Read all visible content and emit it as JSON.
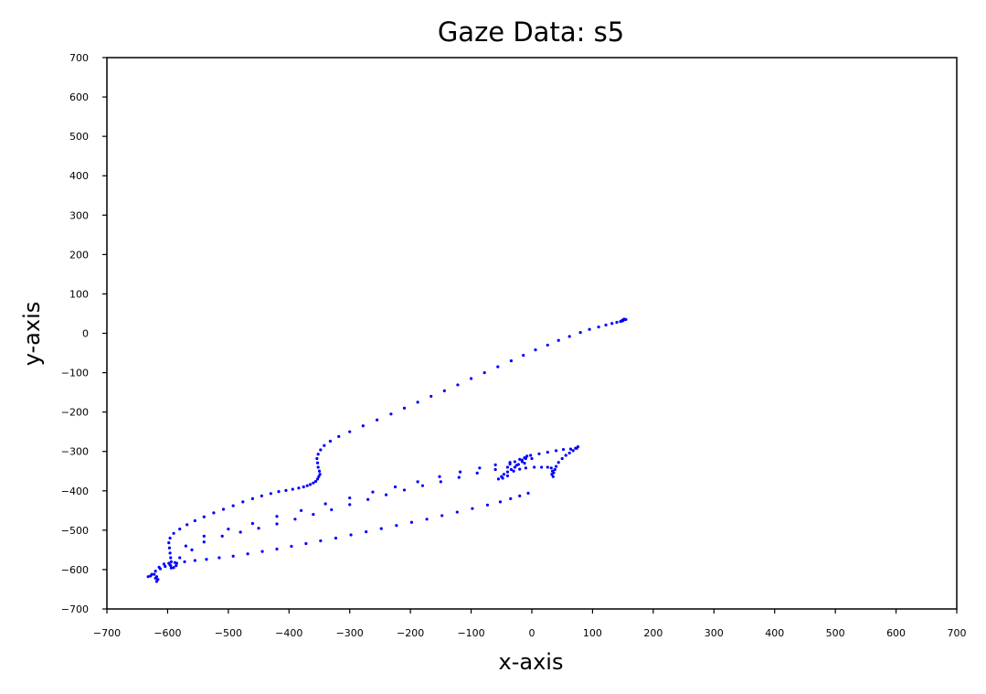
{
  "chart_data": {
    "type": "scatter",
    "title": "Gaze Data: s5",
    "xlabel": "x-axis",
    "ylabel": "y-axis",
    "xlim": [
      -700,
      700
    ],
    "ylim": [
      -700,
      700
    ],
    "xticks": [
      -700,
      -600,
      -500,
      -400,
      -300,
      -200,
      -100,
      0,
      100,
      200,
      300,
      400,
      500,
      600,
      700
    ],
    "yticks": [
      -700,
      -600,
      -500,
      -400,
      -300,
      -200,
      -100,
      0,
      100,
      200,
      300,
      400,
      500,
      600,
      700
    ],
    "xtick_labels": [
      "−700",
      "−600",
      "−500",
      "−400",
      "−300",
      "−200",
      "−100",
      "0",
      "100",
      "200",
      "300",
      "400",
      "500",
      "600",
      "700"
    ],
    "ytick_labels": [
      "−700",
      "−600",
      "−500",
      "−400",
      "−300",
      "−200",
      "−100",
      "0",
      "100",
      "200",
      "300",
      "400",
      "500",
      "600",
      "700"
    ],
    "grid": false,
    "marker_color": "#0000ff",
    "points": [
      [
        153,
        35
      ],
      [
        151,
        34
      ],
      [
        149,
        33
      ],
      [
        152,
        36
      ],
      [
        155,
        35
      ],
      [
        150,
        32
      ],
      [
        148,
        31
      ],
      [
        146,
        30
      ],
      [
        140,
        28
      ],
      [
        132,
        25
      ],
      [
        122,
        21
      ],
      [
        110,
        16
      ],
      [
        95,
        10
      ],
      [
        80,
        2
      ],
      [
        62,
        -8
      ],
      [
        44,
        -18
      ],
      [
        26,
        -30
      ],
      [
        6,
        -42
      ],
      [
        -14,
        -56
      ],
      [
        -34,
        -70
      ],
      [
        -56,
        -85
      ],
      [
        -78,
        -100
      ],
      [
        -100,
        -115
      ],
      [
        -122,
        -131
      ],
      [
        -144,
        -146
      ],
      [
        -166,
        -160
      ],
      [
        -188,
        -175
      ],
      [
        -210,
        -190
      ],
      [
        -232,
        -205
      ],
      [
        -255,
        -220
      ],
      [
        -278,
        -235
      ],
      [
        -300,
        -250
      ],
      [
        -318,
        -262
      ],
      [
        -332,
        -274
      ],
      [
        -342,
        -285
      ],
      [
        -348,
        -296
      ],
      [
        -352,
        -307
      ],
      [
        -354,
        -318
      ],
      [
        -353,
        -329
      ],
      [
        -352,
        -340
      ],
      [
        -350,
        -350
      ],
      [
        -349,
        -358
      ],
      [
        -351,
        -364
      ],
      [
        -353,
        -370
      ],
      [
        -356,
        -376
      ],
      [
        -360,
        -380
      ],
      [
        -365,
        -384
      ],
      [
        -370,
        -387
      ],
      [
        -376,
        -390
      ],
      [
        -384,
        -393
      ],
      [
        -394,
        -396
      ],
      [
        -405,
        -399
      ],
      [
        -417,
        -402
      ],
      [
        -430,
        -407
      ],
      [
        -445,
        -413
      ],
      [
        -460,
        -420
      ],
      [
        -476,
        -428
      ],
      [
        -492,
        -438
      ],
      [
        -508,
        -447
      ],
      [
        -524,
        -456
      ],
      [
        -540,
        -466
      ],
      [
        -555,
        -476
      ],
      [
        -568,
        -486
      ],
      [
        -580,
        -497
      ],
      [
        -590,
        -508
      ],
      [
        -596,
        -520
      ],
      [
        -598,
        -532
      ],
      [
        -597,
        -545
      ],
      [
        -596,
        -558
      ],
      [
        -595,
        -570
      ],
      [
        -594,
        -580
      ],
      [
        -595,
        -590
      ],
      [
        -594,
        -596
      ],
      [
        -590,
        -595
      ],
      [
        -586,
        -590
      ],
      [
        -588,
        -582
      ],
      [
        -598,
        -584
      ],
      [
        -606,
        -586
      ],
      [
        -614,
        -594
      ],
      [
        -620,
        -604
      ],
      [
        -626,
        -612
      ],
      [
        -632,
        -618
      ],
      [
        -628,
        -616
      ],
      [
        -622,
        -612
      ],
      [
        -618,
        -618
      ],
      [
        -616,
        -625
      ],
      [
        -618,
        -630
      ],
      [
        -620,
        -622
      ],
      [
        -612,
        -598
      ],
      [
        -604,
        -592
      ],
      [
        -596,
        -588
      ],
      [
        -585,
        -584
      ],
      [
        -572,
        -580
      ],
      [
        -555,
        -577
      ],
      [
        -536,
        -574
      ],
      [
        -515,
        -570
      ],
      [
        -492,
        -566
      ],
      [
        -468,
        -560
      ],
      [
        -444,
        -554
      ],
      [
        -420,
        -548
      ],
      [
        -396,
        -541
      ],
      [
        -372,
        -534
      ],
      [
        -348,
        -527
      ],
      [
        -323,
        -520
      ],
      [
        -298,
        -512
      ],
      [
        -273,
        -504
      ],
      [
        -248,
        -496
      ],
      [
        -223,
        -488
      ],
      [
        -198,
        -480
      ],
      [
        -173,
        -472
      ],
      [
        -148,
        -463
      ],
      [
        -123,
        -454
      ],
      [
        -98,
        -445
      ],
      [
        -73,
        -436
      ],
      [
        -52,
        -428
      ],
      [
        -35,
        -420
      ],
      [
        -20,
        -413
      ],
      [
        -6,
        -406
      ],
      [
        -580,
        -570
      ],
      [
        -560,
        -550
      ],
      [
        -540,
        -530
      ],
      [
        -510,
        -515
      ],
      [
        -480,
        -505
      ],
      [
        -450,
        -495
      ],
      [
        -420,
        -484
      ],
      [
        -390,
        -472
      ],
      [
        -360,
        -460
      ],
      [
        -330,
        -448
      ],
      [
        -300,
        -435
      ],
      [
        -270,
        -422
      ],
      [
        -240,
        -410
      ],
      [
        -210,
        -398
      ],
      [
        -180,
        -387
      ],
      [
        -150,
        -377
      ],
      [
        -120,
        -366
      ],
      [
        -90,
        -355
      ],
      [
        -60,
        -346
      ],
      [
        -40,
        -340
      ],
      [
        -25,
        -335
      ],
      [
        -12,
        -330
      ],
      [
        -570,
        -540
      ],
      [
        -540,
        -515
      ],
      [
        -500,
        -497
      ],
      [
        -460,
        -483
      ],
      [
        -420,
        -465
      ],
      [
        -380,
        -450
      ],
      [
        -340,
        -433
      ],
      [
        -300,
        -418
      ],
      [
        -262,
        -403
      ],
      [
        -225,
        -390
      ],
      [
        -188,
        -377
      ],
      [
        -152,
        -364
      ],
      [
        -118,
        -352
      ],
      [
        -86,
        -342
      ],
      [
        -60,
        -334
      ],
      [
        -36,
        -328
      ],
      [
        -16,
        -322
      ],
      [
        0,
        -318
      ],
      [
        -8,
        -312
      ],
      [
        -10,
        -318
      ],
      [
        -16,
        -326
      ],
      [
        -22,
        -333
      ],
      [
        -28,
        -340
      ],
      [
        -34,
        -346
      ],
      [
        -40,
        -352
      ],
      [
        -46,
        -358
      ],
      [
        -50,
        -364
      ],
      [
        -55,
        -370
      ],
      [
        -48,
        -368
      ],
      [
        -40,
        -362
      ],
      [
        -30,
        -350
      ],
      [
        -20,
        -345
      ],
      [
        -10,
        -342
      ],
      [
        4,
        -340
      ],
      [
        16,
        -340
      ],
      [
        26,
        -340
      ],
      [
        32,
        -342
      ],
      [
        34,
        -350
      ],
      [
        33,
        -358
      ],
      [
        35,
        -364
      ],
      [
        36,
        -354
      ],
      [
        38,
        -346
      ],
      [
        40,
        -338
      ],
      [
        44,
        -328
      ],
      [
        50,
        -318
      ],
      [
        56,
        -310
      ],
      [
        62,
        -304
      ],
      [
        68,
        -298
      ],
      [
        74,
        -292
      ],
      [
        76,
        -288
      ],
      [
        72,
        -292
      ],
      [
        64,
        -294
      ],
      [
        52,
        -295
      ],
      [
        40,
        -298
      ],
      [
        26,
        -302
      ],
      [
        12,
        -306
      ],
      [
        -2,
        -310
      ],
      [
        -12,
        -316
      ],
      [
        -20,
        -320
      ],
      [
        -28,
        -326
      ],
      [
        -36,
        -332
      ]
    ]
  }
}
